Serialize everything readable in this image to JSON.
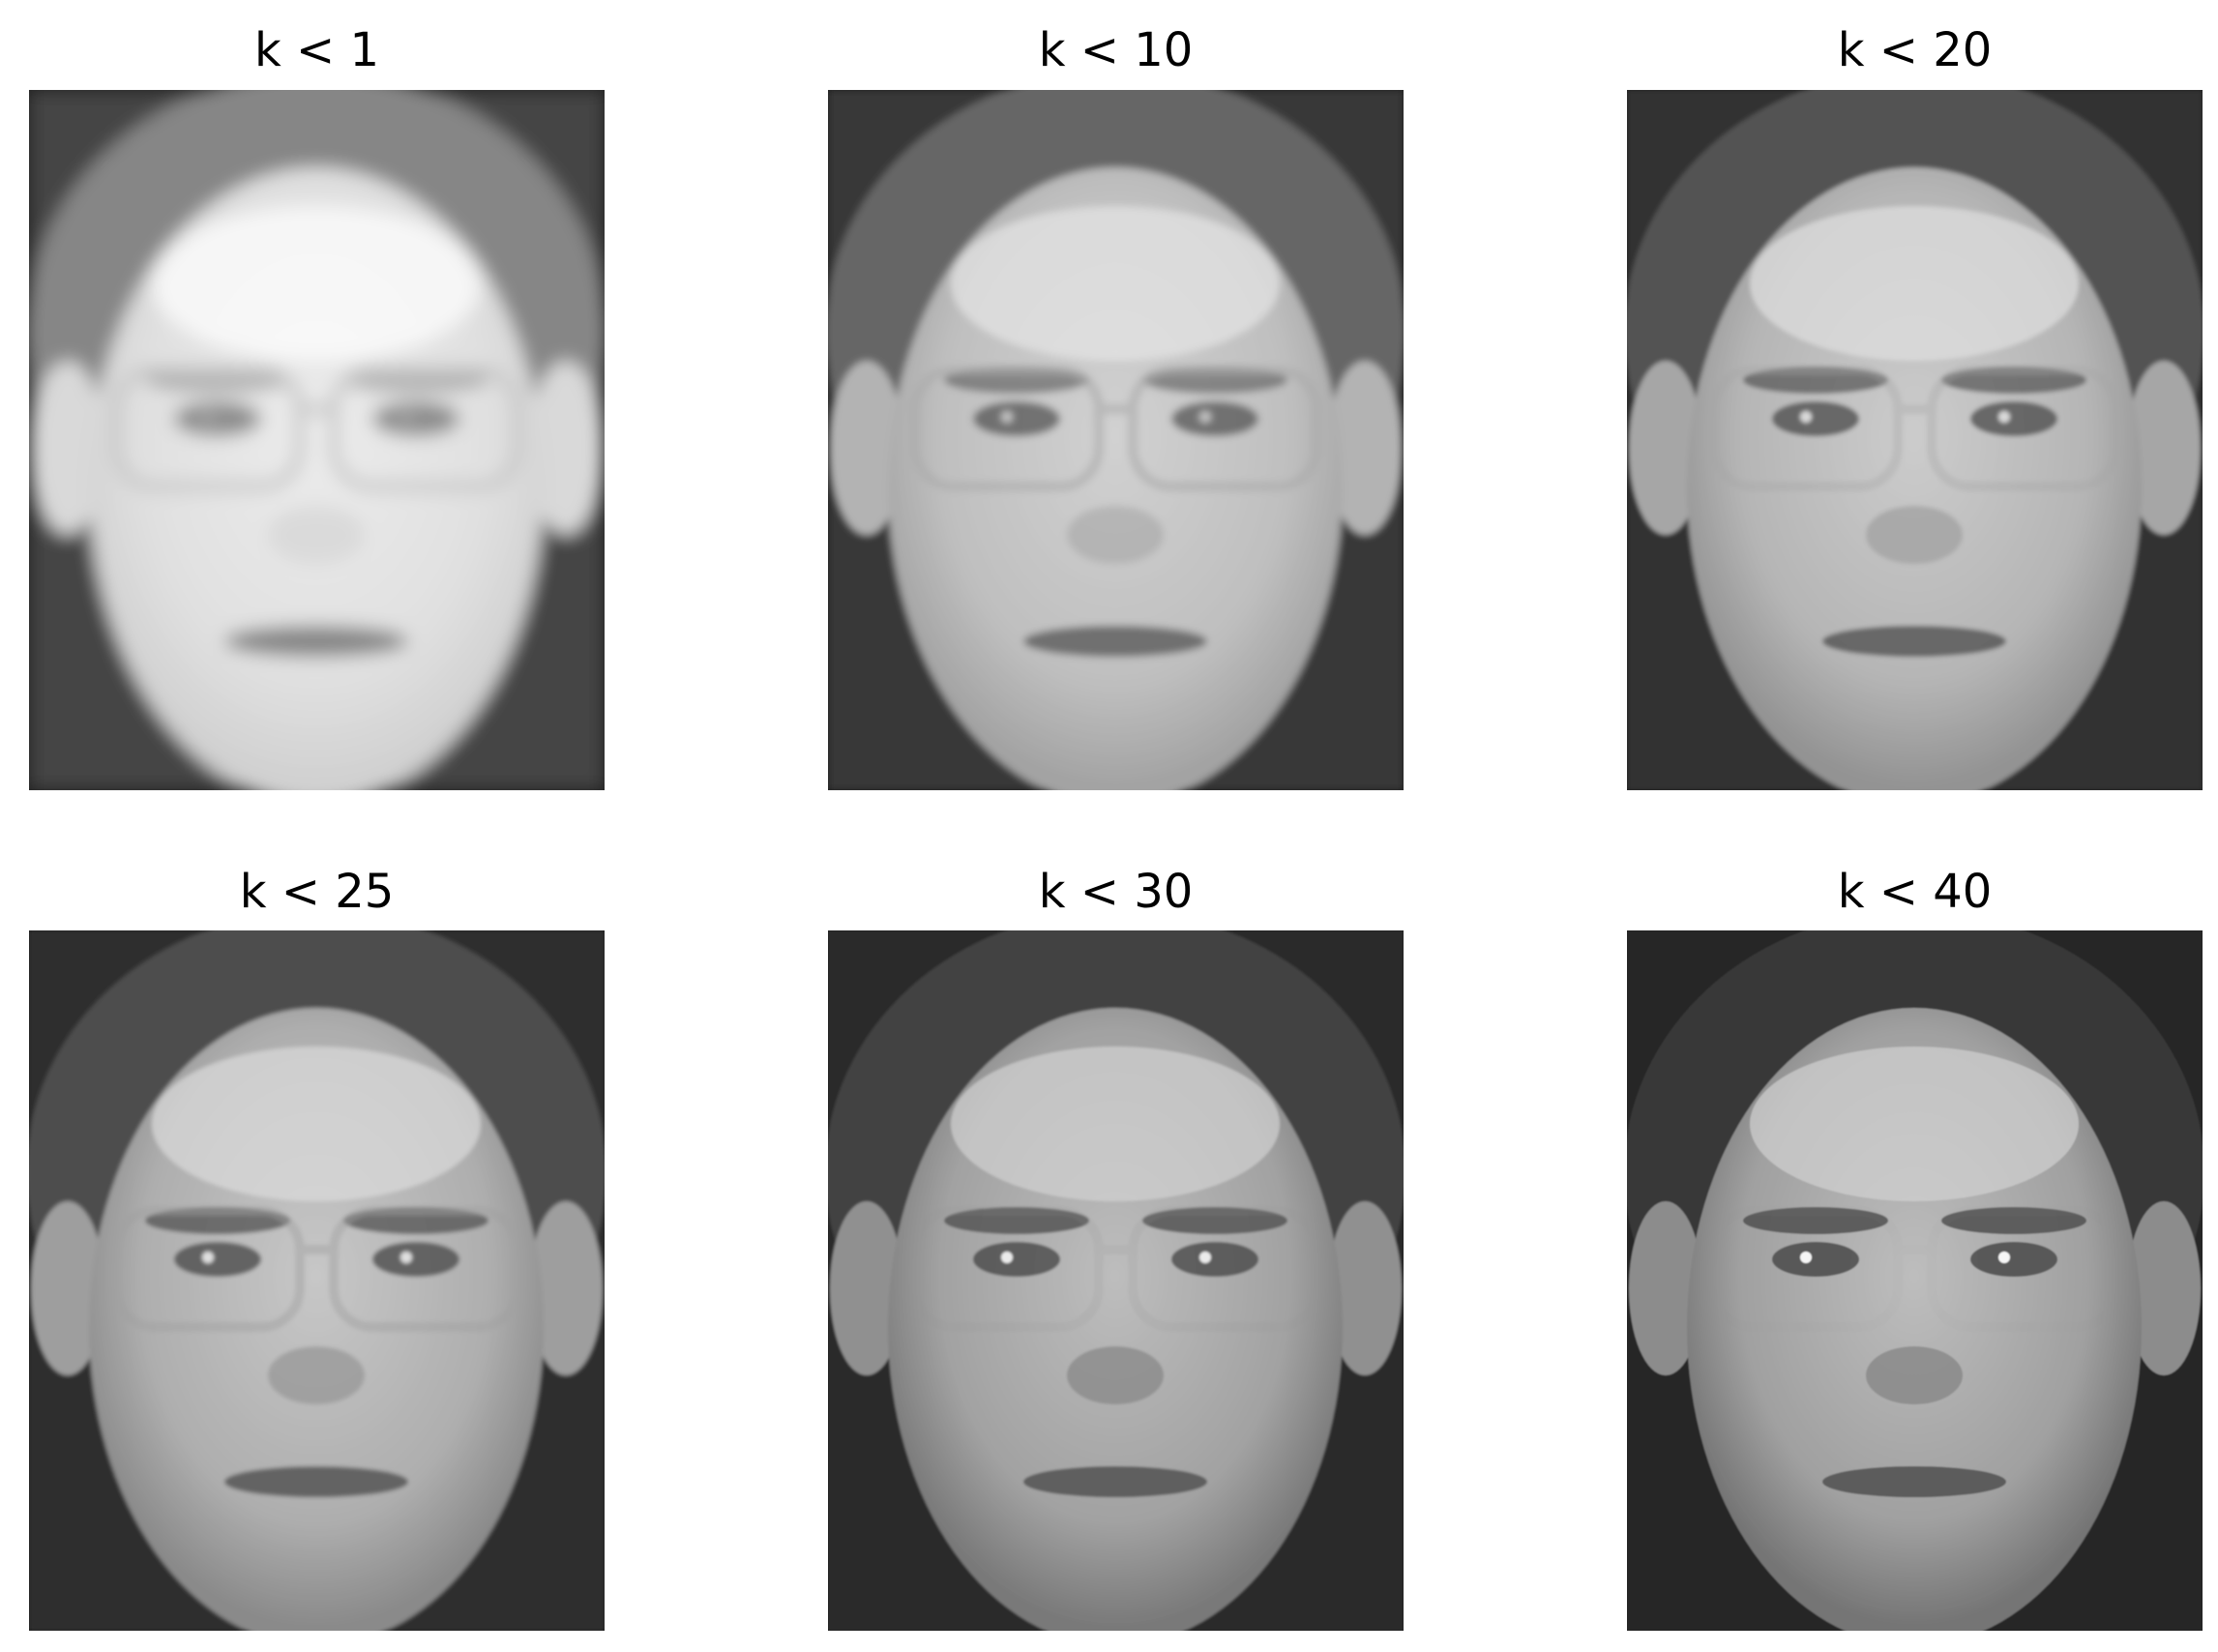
{
  "panels": [
    {
      "title": "k < 1",
      "blur": 9,
      "glasses": 0.9,
      "contrast": 0.35,
      "brightness": 0.92
    },
    {
      "title": "k < 10",
      "blur": 4,
      "glasses": 0.6,
      "contrast": 0.6,
      "brightness": 0.82
    },
    {
      "title": "k < 20",
      "blur": 2.5,
      "glasses": 0.35,
      "contrast": 0.75,
      "brightness": 0.8
    },
    {
      "title": "k < 25",
      "blur": 2,
      "glasses": 0.45,
      "contrast": 0.8,
      "brightness": 0.78
    },
    {
      "title": "k < 30",
      "blur": 1.2,
      "glasses": 0.15,
      "contrast": 0.88,
      "brightness": 0.74
    },
    {
      "title": "k < 40",
      "blur": 0.8,
      "glasses": 0.05,
      "contrast": 0.95,
      "brightness": 0.74
    }
  ],
  "colors": {
    "background": "#ffffff",
    "text": "#000000"
  }
}
